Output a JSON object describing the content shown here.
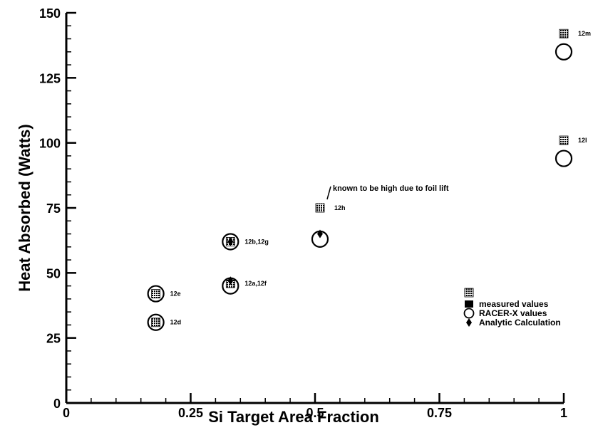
{
  "chart_data": {
    "type": "scatter",
    "title": "",
    "xlabel": "Si Target Area Fraction",
    "ylabel": "Heat Absorbed (Watts)",
    "xlim": [
      0,
      1
    ],
    "ylim": [
      0,
      150
    ],
    "x_ticks": [
      "0",
      "0.25",
      "0.5",
      "0.75",
      "1"
    ],
    "y_ticks": [
      "0",
      "25",
      "50",
      "75",
      "100",
      "125",
      "150"
    ],
    "grid": false,
    "legend_position": "right",
    "series": [
      {
        "name": "measured values",
        "marker": "hatched-square",
        "points": [
          {
            "x": 0.18,
            "y": 42,
            "label": "12e"
          },
          {
            "x": 0.18,
            "y": 31,
            "label": "12d"
          },
          {
            "x": 0.33,
            "y": 62,
            "label": "12b,12g"
          },
          {
            "x": 0.33,
            "y": 46,
            "label": "12a,12f"
          },
          {
            "x": 0.51,
            "y": 75,
            "label": "12h"
          },
          {
            "x": 1.0,
            "y": 142,
            "label": "12m"
          },
          {
            "x": 1.0,
            "y": 101,
            "label": "12l"
          }
        ]
      },
      {
        "name": "RACER-X values",
        "marker": "open-circle",
        "points": [
          {
            "x": 0.18,
            "y": 42
          },
          {
            "x": 0.18,
            "y": 31
          },
          {
            "x": 0.33,
            "y": 62
          },
          {
            "x": 0.33,
            "y": 45
          },
          {
            "x": 0.51,
            "y": 63
          },
          {
            "x": 1.0,
            "y": 135
          },
          {
            "x": 1.0,
            "y": 94
          }
        ]
      },
      {
        "name": "Analytic Calculation",
        "marker": "diamond",
        "points": [
          {
            "x": 0.33,
            "y": 62
          },
          {
            "x": 0.33,
            "y": 47
          },
          {
            "x": 0.51,
            "y": 65
          }
        ]
      }
    ],
    "legend_entries": [
      "measured values",
      "RACER-X values",
      "Analytic Calculation"
    ],
    "annotations": [
      {
        "text": "known to be high due to foil lift",
        "x": 0.51,
        "y": 75
      }
    ]
  }
}
